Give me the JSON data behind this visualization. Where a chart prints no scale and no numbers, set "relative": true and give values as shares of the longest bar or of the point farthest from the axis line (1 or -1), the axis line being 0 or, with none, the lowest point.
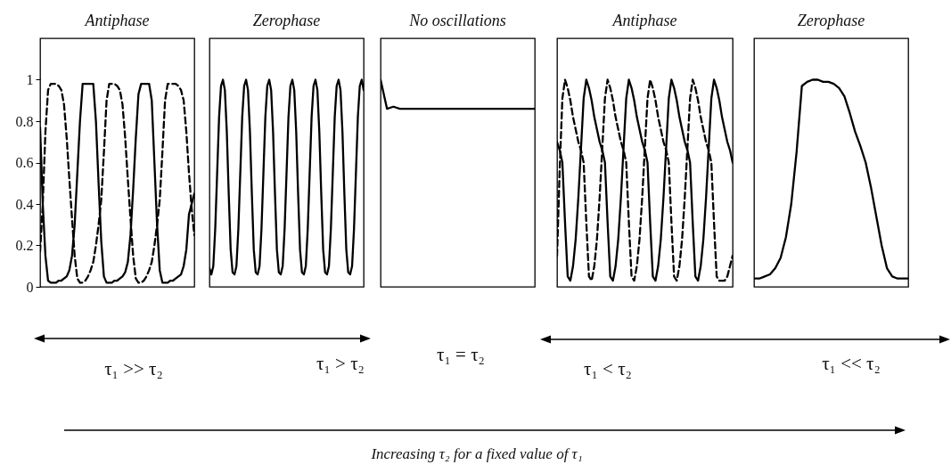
{
  "chart_data": [
    {
      "type": "line",
      "title": "Antiphase",
      "categories": [
        null,
        null,
        null,
        null,
        null,
        null,
        null,
        null,
        null,
        null,
        null,
        null,
        null,
        null,
        null,
        null,
        null,
        null,
        null,
        null,
        null,
        null,
        null,
        null,
        null,
        null,
        null,
        null,
        null,
        null,
        null,
        null,
        null,
        null,
        null,
        null,
        null,
        null,
        null,
        null,
        null,
        null,
        null,
        null,
        null,
        null,
        null,
        null,
        null,
        null,
        null,
        null,
        null,
        null,
        null,
        null,
        null,
        null,
        null
      ],
      "ylim": [
        0,
        1.2
      ],
      "yticks": [
        0,
        0.2,
        0.4,
        0.6,
        0.8,
        1
      ],
      "tick_labels": "y",
      "series": [
        {
          "color": "#000000",
          "line_style": "solid",
          "values": [
            0.77,
            0.4,
            0.15,
            0.03,
            0.02,
            0.02,
            0.02,
            0.03,
            0.03,
            0.04,
            0.05,
            0.08,
            0.15,
            0.3,
            0.55,
            0.8,
            0.98,
            0.98,
            0.98,
            0.98,
            0.98,
            0.8,
            0.5,
            0.22,
            0.05,
            0.02,
            0.02,
            0.02,
            0.03,
            0.03,
            0.04,
            0.05,
            0.07,
            0.12,
            0.25,
            0.47,
            0.72,
            0.93,
            0.98,
            0.98,
            0.98,
            0.98,
            0.9,
            0.6,
            0.3,
            0.08,
            0.02,
            0.02,
            0.02,
            0.03,
            0.03,
            0.04,
            0.05,
            0.06,
            0.1,
            0.18,
            0.35,
            0.4,
            0.45
          ]
        },
        {
          "color": "#000000",
          "line_style": "dashed",
          "values": [
            0.17,
            0.4,
            0.75,
            0.95,
            0.98,
            0.98,
            0.98,
            0.97,
            0.95,
            0.88,
            0.72,
            0.52,
            0.33,
            0.15,
            0.04,
            0.02,
            0.02,
            0.03,
            0.05,
            0.08,
            0.12,
            0.2,
            0.3,
            0.42,
            0.65,
            0.9,
            0.98,
            0.98,
            0.98,
            0.97,
            0.95,
            0.88,
            0.72,
            0.52,
            0.33,
            0.15,
            0.04,
            0.02,
            0.02,
            0.03,
            0.05,
            0.08,
            0.12,
            0.2,
            0.3,
            0.42,
            0.65,
            0.9,
            0.98,
            0.98,
            0.98,
            0.98,
            0.97,
            0.95,
            0.9,
            0.75,
            0.55,
            0.38,
            0.25
          ]
        }
      ]
    },
    {
      "type": "line",
      "title": "Zerophase",
      "relative": true,
      "categories": [
        null,
        null,
        null,
        null,
        null,
        null,
        null,
        null,
        null,
        null,
        null,
        null,
        null,
        null,
        null,
        null,
        null,
        null,
        null,
        null,
        null,
        null,
        null,
        null,
        null,
        null,
        null,
        null,
        null,
        null,
        null,
        null,
        null,
        null,
        null,
        null,
        null,
        null,
        null,
        null,
        null,
        null,
        null,
        null,
        null,
        null,
        null,
        null,
        null,
        null,
        null,
        null,
        null,
        null,
        null,
        null,
        null,
        null,
        null,
        null,
        null,
        null,
        null,
        null,
        null,
        null,
        null,
        null,
        null,
        null,
        null,
        null,
        null,
        null,
        null,
        null,
        null,
        null,
        null,
        null,
        null
      ],
      "series": [
        {
          "color": "#000000",
          "line_style": "solid",
          "values": [
            0.09,
            0.06,
            0.1,
            0.28,
            0.55,
            0.82,
            0.97,
            1.0,
            0.95,
            0.75,
            0.45,
            0.18,
            0.07,
            0.06,
            0.1,
            0.28,
            0.55,
            0.82,
            0.97,
            1.0,
            0.95,
            0.75,
            0.45,
            0.18,
            0.07,
            0.06,
            0.1,
            0.28,
            0.55,
            0.82,
            0.97,
            1.0,
            0.95,
            0.75,
            0.45,
            0.18,
            0.07,
            0.06,
            0.1,
            0.28,
            0.55,
            0.82,
            0.97,
            1.0,
            0.95,
            0.75,
            0.45,
            0.18,
            0.07,
            0.06,
            0.1,
            0.28,
            0.55,
            0.82,
            0.97,
            1.0,
            0.95,
            0.75,
            0.45,
            0.18,
            0.07,
            0.06,
            0.1,
            0.28,
            0.55,
            0.82,
            0.97,
            1.0,
            0.95,
            0.75,
            0.45,
            0.18,
            0.07,
            0.06,
            0.1,
            0.28,
            0.55,
            0.82,
            0.97,
            1.0,
            0.95
          ]
        }
      ]
    },
    {
      "type": "line",
      "title": "No oscillations",
      "relative": true,
      "categories": [
        null,
        null,
        null,
        null,
        null,
        null,
        null,
        null,
        null,
        null,
        null,
        null,
        null,
        null,
        null,
        null,
        null,
        null,
        null,
        null,
        null,
        null,
        null,
        null,
        null
      ],
      "series": [
        {
          "color": "#000000",
          "line_style": "solid",
          "values": [
            1.0,
            0.86,
            0.87,
            0.86,
            0.86,
            0.86,
            0.86,
            0.86,
            0.86,
            0.86,
            0.86,
            0.86,
            0.86,
            0.86,
            0.86,
            0.86,
            0.86,
            0.86,
            0.86,
            0.86,
            0.86,
            0.86,
            0.86,
            0.86,
            0.86
          ]
        }
      ]
    },
    {
      "type": "line",
      "title": "Antiphase",
      "relative": true,
      "categories": [
        null,
        null,
        null,
        null,
        null,
        null,
        null,
        null,
        null,
        null,
        null,
        null,
        null,
        null,
        null,
        null,
        null,
        null,
        null,
        null,
        null,
        null,
        null,
        null,
        null,
        null,
        null,
        null,
        null,
        null,
        null,
        null,
        null,
        null,
        null,
        null,
        null,
        null,
        null,
        null,
        null,
        null,
        null,
        null,
        null,
        null,
        null,
        null,
        null,
        null,
        null,
        null,
        null,
        null,
        null,
        null,
        null,
        null,
        null,
        null,
        null,
        null,
        null,
        null,
        null,
        null,
        null
      ],
      "series": [
        {
          "color": "#000000",
          "line_style": "solid",
          "values": [
            0.7,
            0.66,
            0.6,
            0.31,
            0.05,
            0.03,
            0.1,
            0.23,
            0.43,
            0.67,
            0.91,
            1.0,
            0.96,
            0.9,
            0.82,
            0.76,
            0.7,
            0.66,
            0.6,
            0.31,
            0.05,
            0.03,
            0.1,
            0.23,
            0.43,
            0.67,
            0.91,
            1.0,
            0.96,
            0.9,
            0.82,
            0.76,
            0.7,
            0.66,
            0.6,
            0.31,
            0.05,
            0.03,
            0.1,
            0.23,
            0.43,
            0.67,
            0.91,
            1.0,
            0.96,
            0.9,
            0.82,
            0.76,
            0.7,
            0.66,
            0.6,
            0.31,
            0.05,
            0.03,
            0.1,
            0.23,
            0.43,
            0.67,
            0.91,
            1.0,
            0.96,
            0.9,
            0.82,
            0.76,
            0.7,
            0.66,
            0.6
          ]
        },
        {
          "color": "#000000",
          "line_style": "dashed",
          "values": [
            0.15,
            0.57,
            0.91,
            1.0,
            0.96,
            0.9,
            0.82,
            0.76,
            0.7,
            0.66,
            0.6,
            0.31,
            0.05,
            0.03,
            0.1,
            0.23,
            0.43,
            0.67,
            0.91,
            1.0,
            0.96,
            0.9,
            0.82,
            0.76,
            0.7,
            0.66,
            0.6,
            0.31,
            0.05,
            0.03,
            0.1,
            0.23,
            0.43,
            0.67,
            0.91,
            1.0,
            0.96,
            0.9,
            0.82,
            0.76,
            0.7,
            0.66,
            0.6,
            0.31,
            0.05,
            0.03,
            0.1,
            0.23,
            0.43,
            0.67,
            0.91,
            1.0,
            0.96,
            0.9,
            0.82,
            0.76,
            0.7,
            0.66,
            0.6,
            0.31,
            0.05,
            0.03,
            0.03,
            0.03,
            0.05,
            0.1,
            0.15
          ]
        }
      ]
    },
    {
      "type": "line",
      "title": "Zerophase",
      "relative": true,
      "categories": [
        null,
        null,
        null,
        null,
        null,
        null,
        null,
        null,
        null,
        null,
        null,
        null,
        null,
        null,
        null,
        null,
        null,
        null,
        null,
        null,
        null,
        null,
        null,
        null,
        null,
        null,
        null,
        null,
        null,
        null
      ],
      "series": [
        {
          "color": "#000000",
          "line_style": "solid",
          "values": [
            0.04,
            0.04,
            0.05,
            0.06,
            0.09,
            0.14,
            0.24,
            0.4,
            0.65,
            0.97,
            0.99,
            1.0,
            1.0,
            0.99,
            0.99,
            0.98,
            0.96,
            0.92,
            0.84,
            0.75,
            0.68,
            0.6,
            0.48,
            0.34,
            0.2,
            0.09,
            0.05,
            0.04,
            0.04,
            0.04
          ]
        }
      ]
    },
    {
      "type": "other",
      "annotations": [
        "τ₁ >> τ₂",
        "τ₁ > τ₂",
        "τ₁ = τ₂",
        "τ₁ < τ₂",
        "τ₁ << τ₂",
        "Increasing τ₂ for a fixed value of τ₁"
      ]
    }
  ]
}
